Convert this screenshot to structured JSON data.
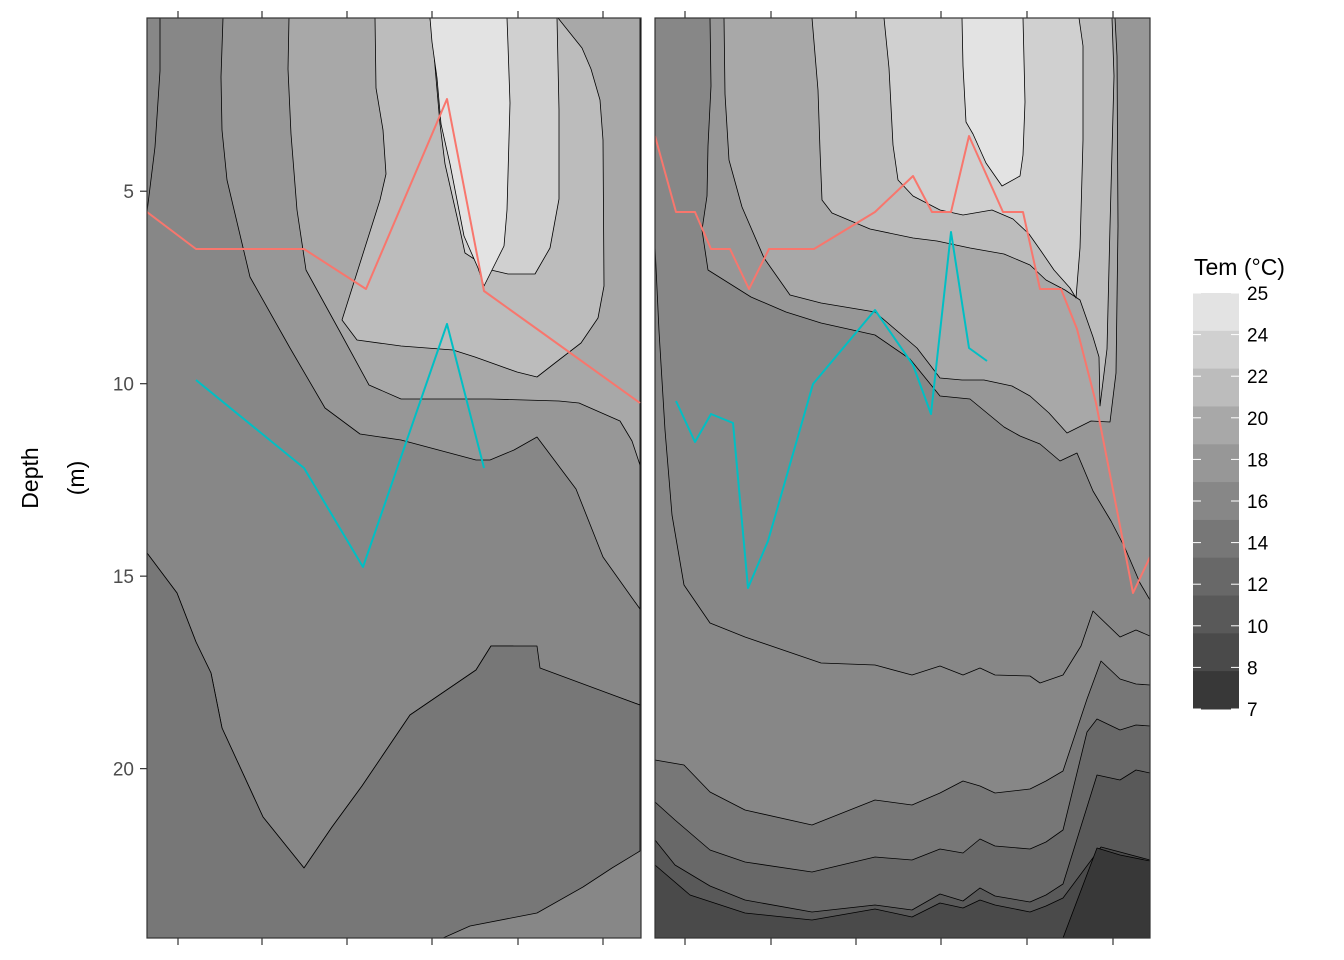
{
  "chart_data": {
    "type": "contour",
    "ylabel_line1": "Depth",
    "ylabel_line2": "(m)",
    "y_reversed": true,
    "y_range": [
      0.5,
      24.4
    ],
    "y_ticks": [
      5,
      10,
      15,
      20
    ],
    "x_tick_labels": "none shown",
    "legend": {
      "title": "Tem (°C)",
      "position": "right",
      "labels": [
        "25",
        "24",
        "22",
        "20",
        "18",
        "16",
        "14",
        "12",
        "10",
        "8",
        "7"
      ],
      "colors": [
        "#e3e3e3",
        "#d0d0d0",
        "#bcbcbc",
        "#a8a8a8",
        "#979797",
        "#878787",
        "#777777",
        "#686868",
        "#595959",
        "#4a4a4a",
        "#383838"
      ]
    },
    "line_colors": {
      "upper": "#f8766d",
      "lower": "#00bfc4"
    },
    "panels": [
      {
        "bands": [
          {
            "fill": "#878787",
            "path": "160,18 160,71 155,147 147,212 147,553 177,593 196,642 211,673 222,728 263,817 304,868 332,827 362,786 410,715 476,670 491,646 513,646 537,668 640,705 640,18 Z"
          },
          {
            "fill": "#777777",
            "path": "147,553 177,593 196,642 211,673 222,728 263,817 304,868 332,827 362,786 410,715 476,670 491,646 537,646 540,668 640,705 640,851 612,868 583,887 537,913 470,926 443,938 147,938 Z"
          },
          {
            "fill": "#979797",
            "path": "223,18 221,77 222,130 227,180 250,277 290,348 325,408 360,434 401,440 476,460 490,460 514,450 537,437 576,489 603,557 640,609 640,18 Z"
          },
          {
            "fill": "#a8a8a8",
            "path": "289,18 288,69 291,134 297,210 306,270 339,330 369,385 401,399 476,399 490,399 559,401 579,403 620,421 632,441 640,465 640,18 Z"
          },
          {
            "fill": "#bcbcbc",
            "path": "375,18 376,88 383,130 386,174 380,200 342,320 357,340 401,346 453,350 475,357 517,372 537,377 555,363 581,343 598,318 604,286 603,140 600,100 591,69 582,48 558,18 Z"
          },
          {
            "fill": "#d0d0d0",
            "path": "430,18 433,42 436,78 440,124 445,164 460,230 465,253 491,270 508,274 535,274 550,248 559,199 559,110 557,18 Z"
          },
          {
            "fill": "#e3e3e3",
            "path": "430,18 432,42 437,78 441,124 450,164 464,236 478,268 484,286 498,258 504,246 507,210 510,103 508,45 507,18 Z"
          }
        ],
        "upper_line": [
          [
            147,
            212
          ],
          [
            196,
            249
          ],
          [
            304,
            249
          ],
          [
            366,
            289
          ],
          [
            447,
            99
          ],
          [
            484,
            291
          ],
          [
            537,
            329
          ],
          [
            640,
            403
          ]
        ],
        "lower_line": [
          [
            196,
            380
          ],
          [
            304,
            468
          ],
          [
            363,
            567
          ],
          [
            447,
            324
          ],
          [
            484,
            468
          ]
        ]
      },
      {
        "bands": [
          {
            "fill": "#878787",
            "path": "655,18 655,246 659,331 665,430 672,515 684,585 710,623 745,637 821,663 875,665 912,675 940,666 963,675 980,668 995,675 1030,676 1040,683 1063,675 1081,646 1093,611 1120,637 1136,630 1150,636 1150,18 Z"
          },
          {
            "fill": "#777777",
            "path": "655,688 655,760 684,765 710,792 745,810 812,825 875,800 912,805 940,793 963,781 980,786 995,793 1030,789 1046,781 1063,771 1087,699 1101,661 1120,679 1136,684 1150,685 1150,938 655,938 Z"
          },
          {
            "fill": "#686868",
            "path": "655,802 675,820 710,850 745,862 812,872 875,857 912,860 940,849 963,853 980,839 995,846 1030,849 1046,842 1063,830 1087,732 1097,719 1120,730 1136,725 1150,726 1150,938 655,938 Z"
          },
          {
            "fill": "#595959",
            "path": "655,840 675,865 710,886 745,900 812,912 875,905 912,910 940,894 963,901 980,888 995,896 1030,902 1046,895 1063,884 1097,775 1120,780 1136,770 1150,773 1150,938 655,938 Z"
          },
          {
            "fill": "#4a4a4a",
            "path": "655,865 690,895 745,913 812,920 875,909 912,917 940,903 963,908 980,900 995,905 1030,912 1046,906 1063,898 1101,847 1120,852 1150,860 1150,938 655,938 Z"
          },
          {
            "fill": "#383838",
            "path": "1063,938 1097,848 1120,855 1150,861 1150,938 Z"
          },
          {
            "fill": "#979797",
            "path": "710,18 711,86 708,146 707,196 702,230 708,270 751,297 786,312 821,323 875,335 910,359 940,396 970,399 1004,427 1020,436 1040,444 1060,461 1077,453 1093,491 1111,521 1125,548 1140,583 1150,600 1150,18 Z"
          },
          {
            "fill": "#a8a8a8",
            "path": "724,18 725,94 729,160 742,207 764,258 790,295 821,303 875,312 917,348 940,378 962,380 984,380 1012,386 1030,396 1049,413 1067,433 1091,421 1110,422 1116,373 1118,226 1117,56 1115,18 Z"
          },
          {
            "fill": "#bcbcbc",
            "path": "812,18 818,90 820,150 822,200 832,213 870,229 913,238 937,241 970,248 1004,254 1030,265 1046,280 1065,290 1080,300 1093,337 1099,357 1100,406 1107,349 1110,226 1114,76 1112,18 Z"
          },
          {
            "fill": "#d0d0d0",
            "path": "884,18 889,68 893,145 898,180 913,196 940,210 963,215 992,210 1013,219 1029,234 1041,251 1054,270 1070,288 1076,298 1080,248 1083,140 1083,46 1079,18 Z"
          },
          {
            "fill": "#e3e3e3",
            "path": "962,18 963,66 966,122 973,134 986,163 1002,186 1020,176 1023,155 1025,102 1023,18 Z"
          }
        ],
        "upper_line": [
          [
            655,
            136
          ],
          [
            676,
            212
          ],
          [
            695,
            212
          ],
          [
            711,
            249
          ],
          [
            730,
            249
          ],
          [
            749,
            289
          ],
          [
            769,
            249
          ],
          [
            814,
            249
          ],
          [
            875,
            212
          ],
          [
            913,
            176
          ],
          [
            932,
            212
          ],
          [
            951,
            212
          ],
          [
            969,
            136
          ],
          [
            1003,
            212
          ],
          [
            1023,
            212
          ],
          [
            1040,
            289
          ],
          [
            1061,
            289
          ],
          [
            1077,
            329
          ],
          [
            1096,
            403
          ],
          [
            1114,
            495
          ],
          [
            1133,
            593
          ],
          [
            1150,
            557
          ]
        ],
        "lower_line": [
          [
            676,
            401
          ],
          [
            695,
            442
          ],
          [
            711,
            414
          ],
          [
            733,
            423
          ],
          [
            748,
            588
          ],
          [
            768,
            541
          ],
          [
            813,
            384
          ],
          [
            875,
            310
          ],
          [
            913,
            365
          ],
          [
            931,
            414
          ],
          [
            951,
            232
          ],
          [
            969,
            348
          ],
          [
            987,
            361
          ]
        ]
      }
    ]
  }
}
